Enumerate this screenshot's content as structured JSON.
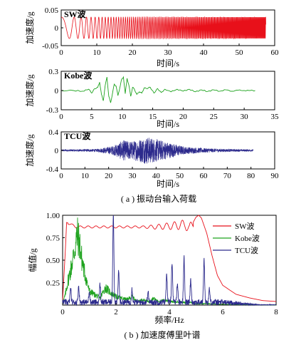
{
  "chart_data": [
    {
      "type": "line",
      "title": "SW波",
      "xlabel": "时间/s",
      "ylabel": "加速度/g",
      "xlim": [
        0,
        60
      ],
      "ylim": [
        -0.05,
        0.05
      ],
      "xticks": [
        "0",
        "10",
        "20",
        "30",
        "40",
        "50",
        "60"
      ],
      "yticks": [
        "-0.05",
        "0",
        "0.05"
      ],
      "series": [
        {
          "color": "#e8101a",
          "signal": "sine sweep",
          "amplitude": 0.03,
          "duration": 57.5,
          "freq_start_hz": 0.12,
          "freq_end_hz": 5.0
        }
      ]
    },
    {
      "type": "line",
      "title": "Kobe波",
      "xlabel": "时间/s",
      "ylabel": "加速度/g",
      "xlim": [
        0,
        35
      ],
      "ylim": [
        -0.3,
        0.3
      ],
      "xticks": [
        "0",
        "5",
        "10",
        "15",
        "20",
        "25",
        "30",
        "35"
      ],
      "yticks": [
        "-0.3",
        "0",
        "0.3"
      ],
      "series": [
        {
          "color": "#1fa31f",
          "x": [
            0,
            2,
            3.5,
            4.5,
            5,
            5.5,
            6,
            6.3,
            6.6,
            6.9,
            7.2,
            7.5,
            7.8,
            8.1,
            8.4,
            8.7,
            9,
            9.3,
            9.6,
            9.9,
            10.2,
            10.5,
            10.8,
            11.1,
            11.4,
            11.7,
            12,
            12.4,
            12.8,
            13.2,
            13.6,
            14,
            14.6,
            15.2,
            15.8,
            16.4,
            17,
            18,
            19,
            20,
            21,
            22,
            23,
            24,
            25,
            26,
            27,
            28,
            29,
            30,
            31,
            31.8
          ],
          "y": [
            0,
            0,
            -0.01,
            0.02,
            -0.04,
            0.03,
            0.05,
            0.13,
            -0.06,
            -0.16,
            0.07,
            0.21,
            -0.09,
            -0.19,
            -0.05,
            0.1,
            0.07,
            -0.08,
            0.04,
            0.17,
            0.21,
            -0.05,
            0.19,
            0.08,
            -0.09,
            0.05,
            0.02,
            -0.06,
            -0.02,
            -0.04,
            0.04,
            0.03,
            0.05,
            -0.04,
            0.03,
            -0.03,
            0.02,
            -0.02,
            0.02,
            -0.01,
            0.02,
            -0.02,
            0.01,
            -0.015,
            0.01,
            -0.01,
            0.01,
            -0.01,
            0.005,
            0,
            0,
            0
          ]
        }
      ]
    },
    {
      "type": "line",
      "title": "TCU波",
      "xlabel": "时间/s",
      "ylabel": "加速度/g",
      "xlim": [
        0,
        90
      ],
      "ylim": [
        -0.4,
        0.4
      ],
      "xticks": [
        "0",
        "10",
        "20",
        "30",
        "40",
        "50",
        "60",
        "70",
        "80",
        "90"
      ],
      "yticks": [
        "-0.4",
        "0",
        "0.4"
      ],
      "series": [
        {
          "color": "#2c2a8c",
          "signal": "broadband noise",
          "duration": 81,
          "envelope": [
            [
              0,
              0.02
            ],
            [
              15,
              0.03
            ],
            [
              22,
              0.1
            ],
            [
              26,
              0.22
            ],
            [
              30,
              0.2
            ],
            [
              36,
              0.3
            ],
            [
              40,
              0.25
            ],
            [
              45,
              0.18
            ],
            [
              52,
              0.08
            ],
            [
              60,
              0.05
            ],
            [
              70,
              0.03
            ],
            [
              81,
              0.02
            ]
          ]
        }
      ]
    },
    {
      "type": "line",
      "xlabel": "频率/Hz",
      "ylabel": "幅值/g",
      "xlim": [
        0,
        8
      ],
      "ylim": [
        0,
        1.0
      ],
      "xticks": [
        "0",
        "2",
        "4",
        "6",
        "8"
      ],
      "yticks": [
        "0.25",
        "0.50",
        "0.75",
        "1.00"
      ],
      "legend": "top-right",
      "series": [
        {
          "name": "SW波",
          "color": "#e8101a",
          "x": [
            0,
            0.1,
            0.15,
            0.3,
            0.5,
            1,
            2,
            3,
            3.5,
            4,
            4.4,
            4.6,
            4.75,
            4.85,
            5.0,
            5.1,
            5.2,
            5.4,
            5.6,
            5.8,
            6,
            6.5,
            7,
            7.5,
            8
          ],
          "y": [
            0.05,
            0.6,
            0.92,
            0.9,
            0.87,
            0.87,
            0.87,
            0.87,
            0.87,
            0.88,
            0.89,
            0.9,
            0.84,
            0.9,
            0.98,
            1.0,
            0.97,
            0.8,
            0.55,
            0.33,
            0.22,
            0.12,
            0.08,
            0.05,
            0.04
          ]
        },
        {
          "name": "Kobe波",
          "color": "#1fa31f",
          "x": [
            0,
            0.1,
            0.2,
            0.3,
            0.4,
            0.5,
            0.55,
            0.6,
            0.65,
            0.7,
            0.8,
            0.9,
            1.0,
            1.2,
            1.4,
            1.6,
            1.8,
            2.0,
            2.2,
            2.4,
            2.6,
            2.8,
            3.0,
            3.2,
            3.4,
            3.6,
            3.8,
            4.0,
            4.2,
            4.4,
            4.6,
            4.8,
            5.0,
            5.5,
            6,
            7,
            8
          ],
          "y": [
            0.02,
            0.15,
            0.35,
            0.5,
            0.7,
            0.9,
            1.0,
            0.95,
            0.85,
            0.7,
            0.5,
            0.35,
            0.2,
            0.15,
            0.1,
            0.25,
            0.18,
            0.12,
            0.1,
            0.08,
            0.12,
            0.05,
            0.08,
            0.05,
            0.1,
            0.05,
            0.07,
            0.06,
            0.04,
            0.05,
            0.03,
            0.04,
            0.02,
            0.02,
            0.01,
            0.005,
            0
          ]
        },
        {
          "name": "TCU波",
          "color": "#2c2a8c",
          "peaks": [
            [
              0.3,
              0.15
            ],
            [
              0.6,
              0.18
            ],
            [
              1.0,
              0.12
            ],
            [
              1.4,
              0.2
            ],
            [
              1.9,
              1.0
            ],
            [
              2.1,
              0.35
            ],
            [
              2.6,
              0.15
            ],
            [
              3.2,
              0.12
            ],
            [
              3.9,
              0.32
            ],
            [
              4.1,
              0.45
            ],
            [
              4.3,
              0.22
            ],
            [
              4.55,
              0.5
            ],
            [
              4.8,
              0.25
            ],
            [
              5.3,
              0.48
            ],
            [
              5.5,
              0.15
            ]
          ],
          "baseline": 0.04
        }
      ]
    }
  ],
  "captions": {
    "a": "( a ) 振动台输入荷载",
    "b": "( b ) 加速度傅里叶谱"
  }
}
